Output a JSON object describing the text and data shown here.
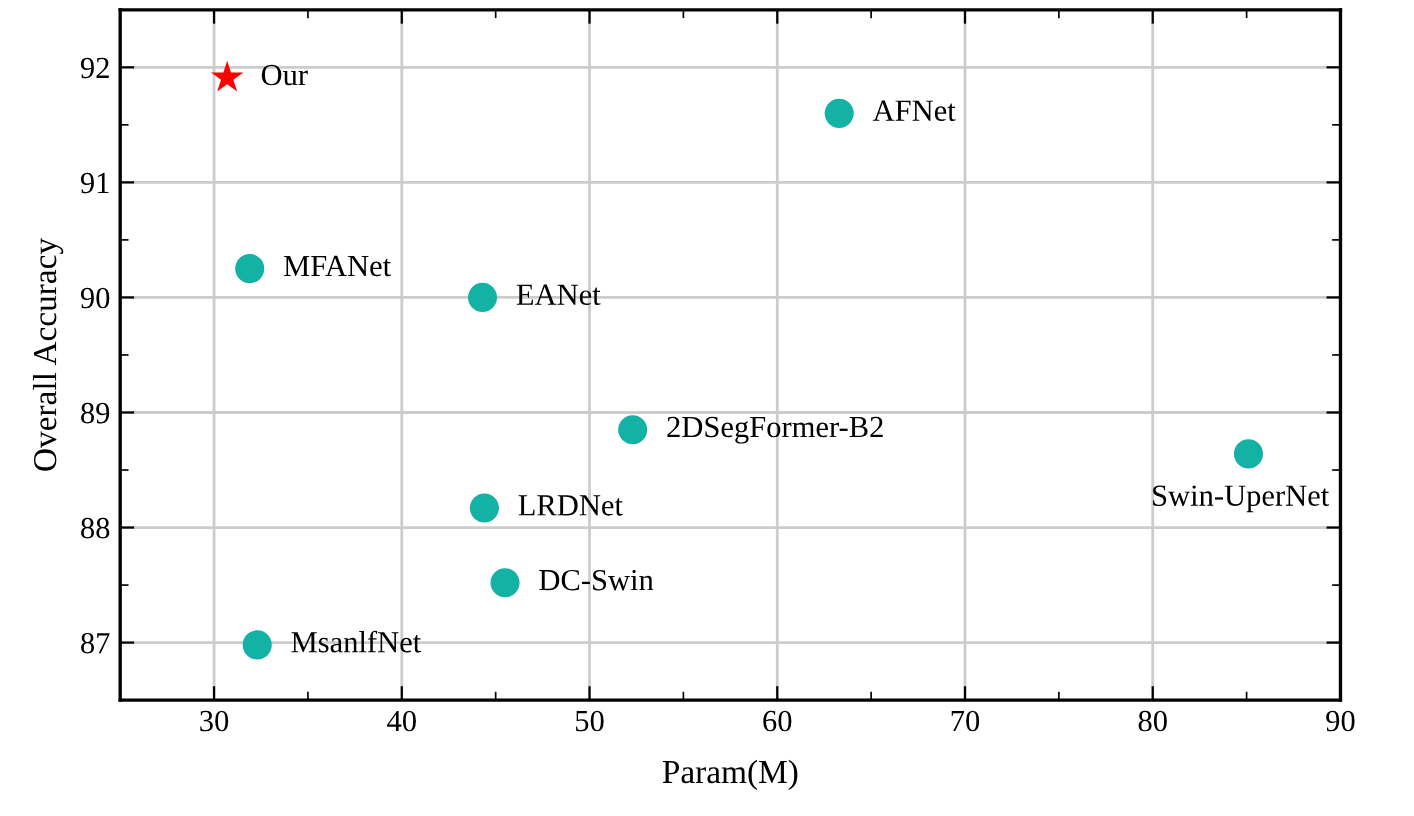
{
  "chart_data": {
    "type": "scatter",
    "xlabel": "Param(M)",
    "ylabel": "Overall Accuracy",
    "xlim": [
      25,
      90
    ],
    "xticks": [
      30,
      40,
      50,
      60,
      70,
      80,
      90
    ],
    "ylim": [
      86.5,
      92.5
    ],
    "yticks": [
      87,
      88,
      89,
      90,
      91,
      92
    ],
    "grid": true,
    "legend": false,
    "series": [
      {
        "name": "Our",
        "color": "#ff0000",
        "marker": "star",
        "x": [
          30.7
        ],
        "values": [
          91.91
        ]
      },
      {
        "name": "AFNet",
        "color": "#14b1a5",
        "marker": "circle",
        "x": [
          63.3
        ],
        "values": [
          91.6
        ]
      },
      {
        "name": "MFANet",
        "color": "#14b1a5",
        "marker": "circle",
        "x": [
          31.9
        ],
        "values": [
          90.25
        ]
      },
      {
        "name": "EANet",
        "color": "#14b1a5",
        "marker": "circle",
        "x": [
          44.3
        ],
        "values": [
          90.0
        ]
      },
      {
        "name": "2DSegFormer-B2",
        "color": "#14b1a5",
        "marker": "circle",
        "x": [
          52.3
        ],
        "values": [
          88.85
        ]
      },
      {
        "name": "Swin-UperNet",
        "color": "#14b1a5",
        "marker": "circle",
        "x": [
          85.1
        ],
        "values": [
          88.64
        ]
      },
      {
        "name": "LRDNet",
        "color": "#14b1a5",
        "marker": "circle",
        "x": [
          44.4
        ],
        "values": [
          88.17
        ]
      },
      {
        "name": "DC-Swin",
        "color": "#14b1a5",
        "marker": "circle",
        "x": [
          45.5
        ],
        "values": [
          87.52
        ]
      },
      {
        "name": "MsanlfNet",
        "color": "#14b1a5",
        "marker": "circle",
        "x": [
          32.3
        ],
        "values": [
          86.98
        ]
      }
    ]
  }
}
